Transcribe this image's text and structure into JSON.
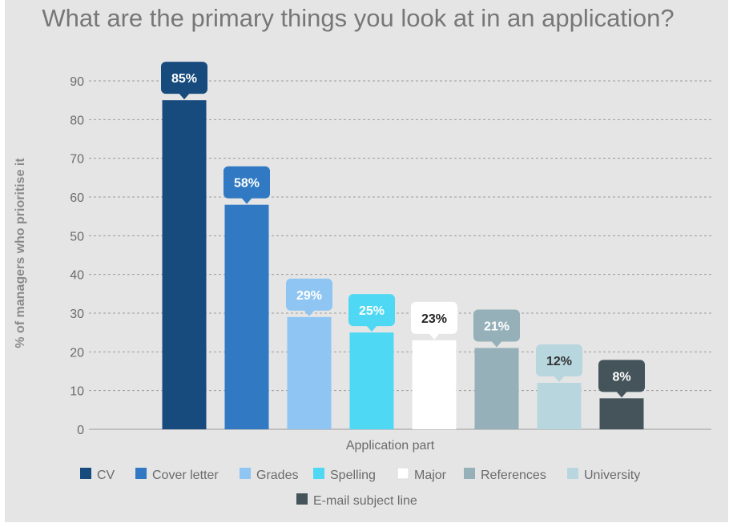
{
  "chart_data": {
    "type": "bar",
    "title": "What are the primary things you look at in an application?",
    "xlabel": "Application part",
    "ylabel": "% of managers who prioritise it",
    "ylim": [
      0,
      90
    ],
    "yticks": [
      0,
      10,
      20,
      30,
      40,
      50,
      60,
      70,
      80,
      90
    ],
    "grid": true,
    "legend_position": "bottom",
    "categories": [
      "CV",
      "Cover letter",
      "Grades",
      "Spelling",
      "Major",
      "References",
      "University",
      "E-mail subject line"
    ],
    "values": [
      85,
      58,
      29,
      25,
      23,
      21,
      12,
      8
    ],
    "data_labels": [
      "85%",
      "58%",
      "29%",
      "25%",
      "23%",
      "21%",
      "12%",
      "8%"
    ],
    "colors": [
      "#174b7e",
      "#3179c2",
      "#8fc5f2",
      "#4fd8f4",
      "#ffffff",
      "#95b0b8",
      "#b8d6de",
      "#44545a"
    ],
    "label_text_colors": [
      "#ffffff",
      "#ffffff",
      "#ffffff",
      "#ffffff",
      "#222222",
      "#ffffff",
      "#333333",
      "#ffffff"
    ]
  }
}
